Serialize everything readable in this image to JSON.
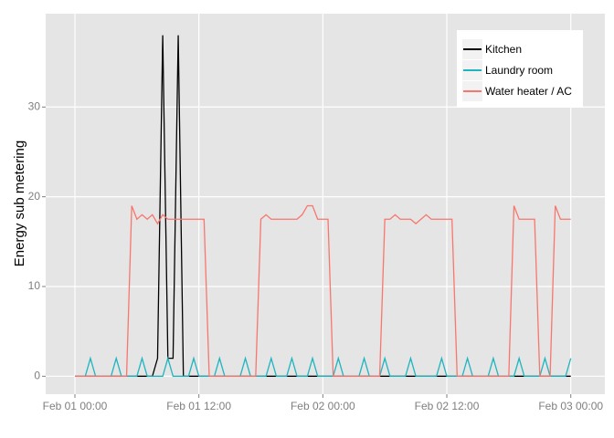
{
  "chart_data": {
    "type": "line",
    "ylabel": "Energy sub metering",
    "x": [
      0,
      0.5,
      1,
      1.5,
      2,
      2.5,
      3,
      3.5,
      4,
      4.5,
      5,
      5.5,
      6,
      6.5,
      7,
      7.5,
      8,
      8.5,
      9,
      9.5,
      10,
      10.5,
      11,
      11.5,
      12,
      12.5,
      13,
      13.5,
      14,
      14.5,
      15,
      15.5,
      16,
      16.5,
      17,
      17.5,
      18,
      18.5,
      19,
      19.5,
      20,
      20.5,
      21,
      21.5,
      22,
      22.5,
      23,
      23.5,
      24,
      24.5,
      25,
      25.5,
      26,
      26.5,
      27,
      27.5,
      28,
      28.5,
      29,
      29.5,
      30,
      30.5,
      31,
      31.5,
      32,
      32.5,
      33,
      33.5,
      34,
      34.5,
      35,
      35.5,
      36,
      36.5,
      37,
      37.5,
      38,
      38.5,
      39,
      39.5,
      40,
      40.5,
      41,
      41.5,
      42,
      42.5,
      43,
      43.5,
      44,
      44.5,
      45,
      45.5,
      46,
      46.5,
      47,
      47.5,
      48
    ],
    "series": [
      {
        "name": "Kitchen",
        "color": "#000000",
        "values": [
          0,
          0,
          0,
          0,
          0,
          0,
          0,
          0,
          0,
          0,
          0,
          0,
          0,
          0,
          0,
          0,
          2,
          38,
          2,
          2,
          38,
          0,
          0,
          0,
          0,
          0,
          0,
          0,
          0,
          0,
          0,
          0,
          0,
          0,
          0,
          0,
          0,
          0,
          0,
          0,
          0,
          0,
          0,
          0,
          0,
          0,
          0,
          0,
          0,
          0,
          0,
          0,
          0,
          0,
          0,
          0,
          0,
          0,
          0,
          0,
          0,
          0,
          0,
          0,
          0,
          0,
          0,
          0,
          0,
          0,
          0,
          0,
          0,
          0,
          0,
          0,
          0,
          0,
          0,
          0,
          0,
          0,
          0,
          0,
          0,
          0,
          0,
          0,
          0,
          0,
          0,
          0,
          0,
          0,
          0,
          0,
          0
        ]
      },
      {
        "name": "Laundry room",
        "color": "#1fb5c0",
        "values": [
          0,
          0,
          0,
          2,
          0,
          0,
          0,
          0,
          2,
          0,
          0,
          0,
          0,
          2,
          0,
          0,
          0,
          0,
          2,
          0,
          0,
          0,
          0,
          2,
          0,
          0,
          0,
          0,
          2,
          0,
          0,
          0,
          0,
          2,
          0,
          0,
          0,
          0,
          2,
          0,
          0,
          0,
          2,
          0,
          0,
          0,
          2,
          0,
          0,
          0,
          0,
          2,
          0,
          0,
          0,
          0,
          2,
          0,
          0,
          0,
          2,
          0,
          0,
          0,
          0,
          2,
          0,
          0,
          0,
          0,
          0,
          2,
          0,
          0,
          0,
          0,
          2,
          0,
          0,
          0,
          0,
          2,
          0,
          0,
          0,
          0,
          2,
          0,
          0,
          0,
          0,
          2,
          0,
          0,
          0,
          0,
          2
        ]
      },
      {
        "name": "Water heater / AC",
        "color": "#f8766d",
        "values": [
          0,
          0,
          0,
          0,
          0,
          0,
          0,
          0,
          0,
          0,
          0,
          19,
          17.5,
          18,
          17.5,
          18,
          17,
          18,
          17.5,
          17.5,
          17.5,
          17.5,
          17.5,
          17.5,
          17.5,
          17.5,
          0,
          0,
          0,
          0,
          0,
          0,
          0,
          0,
          0,
          0,
          17.5,
          18,
          17.5,
          17.5,
          17.5,
          17.5,
          17.5,
          17.5,
          18,
          19,
          19,
          17.5,
          17.5,
          17.5,
          0,
          0,
          0,
          0,
          0,
          0,
          0,
          0,
          0,
          0,
          17.5,
          17.5,
          18,
          17.5,
          17.5,
          17.5,
          17,
          17.5,
          18,
          17.5,
          17.5,
          17.5,
          17.5,
          17.5,
          0,
          0,
          0,
          0,
          0,
          0,
          0,
          0,
          0,
          0,
          0,
          19,
          17.5,
          17.5,
          17.5,
          17.5,
          0,
          0,
          0,
          19,
          17.5,
          17.5,
          17.5
        ]
      }
    ],
    "xlim": [
      -2.83,
      51.3
    ],
    "xticks": [
      {
        "value": 0,
        "label": "Feb 01 00:00"
      },
      {
        "value": 12,
        "label": "Feb 01 12:00"
      },
      {
        "value": 24,
        "label": "Feb 02 00:00"
      },
      {
        "value": 36,
        "label": "Feb 02 12:00"
      },
      {
        "value": 48,
        "label": "Feb 03 00:00"
      }
    ],
    "ylim": [
      -2,
      40.4
    ],
    "yticks": [
      0,
      10,
      20,
      30
    ],
    "grid": true,
    "legend": "top-right"
  }
}
